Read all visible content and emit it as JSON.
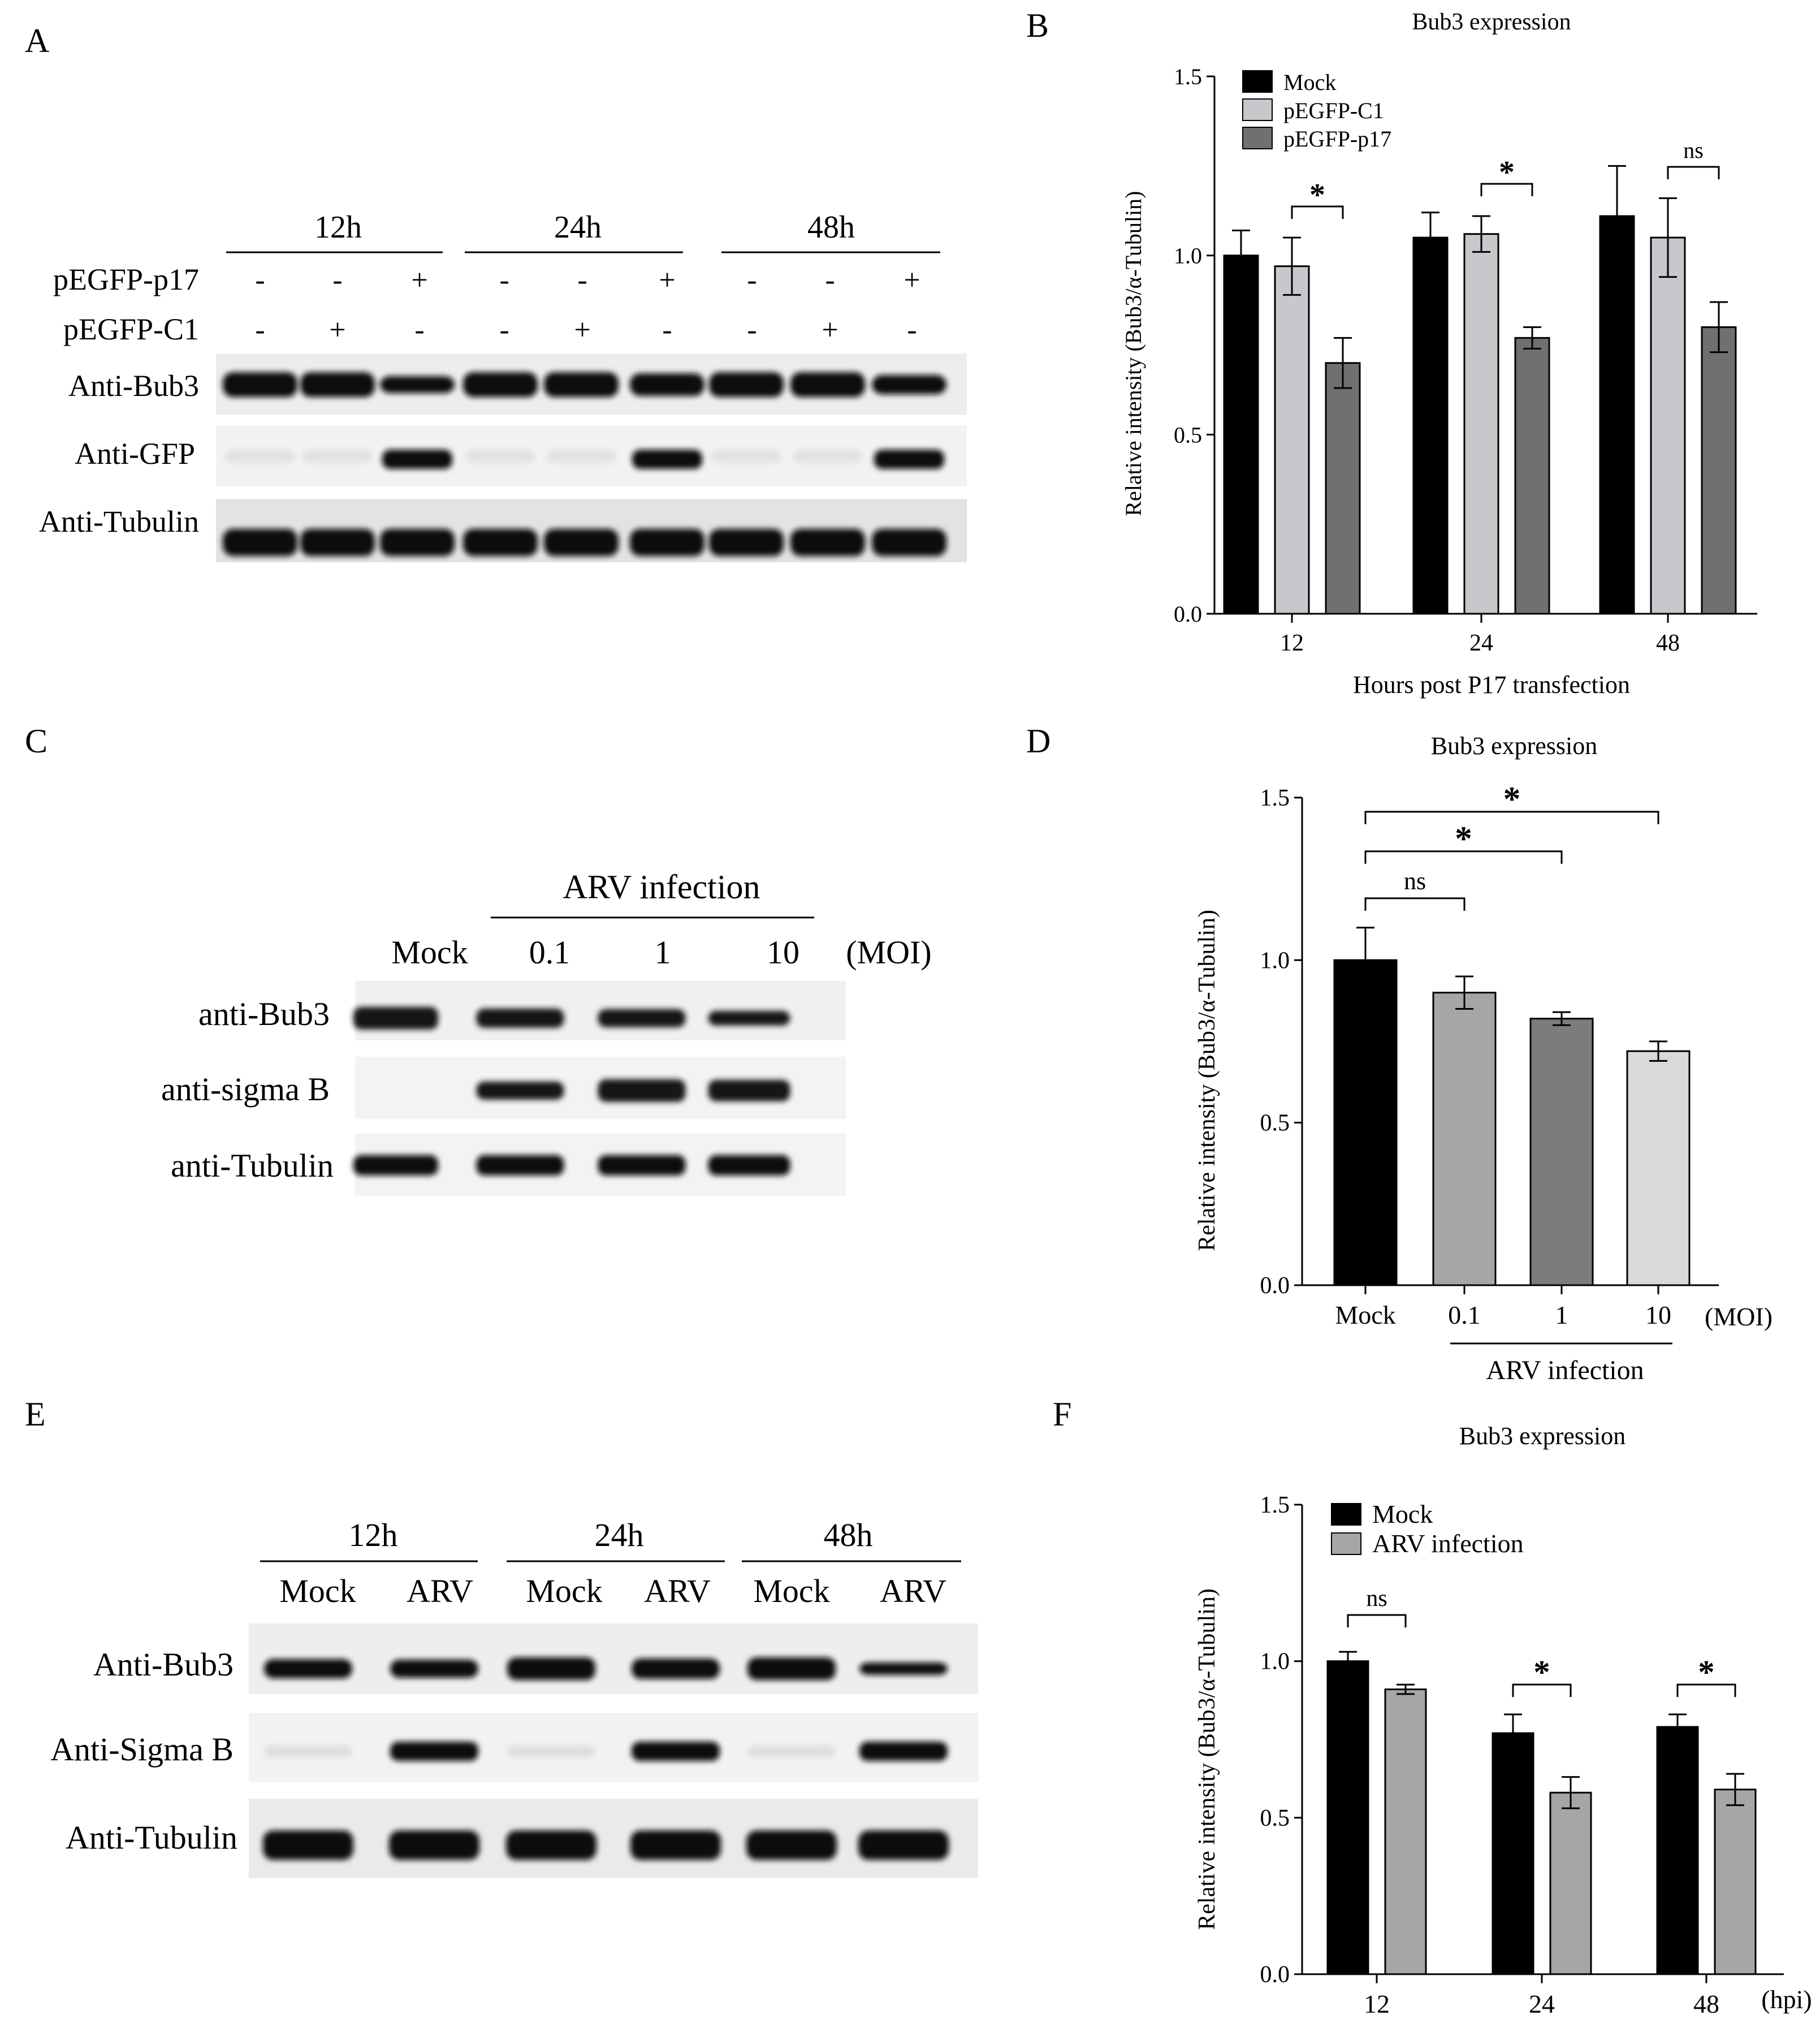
{
  "panel_labels": [
    "A",
    "B",
    "C",
    "D",
    "E",
    "F"
  ],
  "colors": {
    "black": "#000000",
    "light_gray": "#c7c7cc",
    "dark_gray": "#707070",
    "mid_gray": "#a6a6a6",
    "gray_d": "#7c7c7c",
    "pale_gray": "#d9d9d9",
    "bg": "#ffffff"
  },
  "blot_a": {
    "timepoints": [
      "12h",
      "24h",
      "48h"
    ],
    "row_labels": [
      "pEGFP-p17",
      "pEGFP-C1"
    ],
    "p17_signs": [
      "-",
      "-",
      "+",
      "-",
      "-",
      "+",
      "-",
      "-",
      "+"
    ],
    "c1_signs": [
      "-",
      "+",
      "-",
      "-",
      "+",
      "-",
      "-",
      "+",
      "-"
    ],
    "antibodies": [
      "Anti-Bub3",
      "Anti-GFP",
      "Anti-Tubulin"
    ]
  },
  "blot_c": {
    "group_label": "ARV infection",
    "lanes": [
      "Mock",
      "0.1",
      "1",
      "10"
    ],
    "unit": "(MOI)",
    "antibodies": [
      "anti-Bub3",
      "anti-sigma B",
      "anti-Tubulin"
    ]
  },
  "blot_e": {
    "timepoints": [
      "12h",
      "24h",
      "48h"
    ],
    "lanes": [
      "Mock",
      "ARV",
      "Mock",
      "ARV",
      "Mock",
      "ARV"
    ],
    "antibodies": [
      "Anti-Bub3",
      "Anti-Sigma B",
      "Anti-Tubulin"
    ]
  },
  "chart_data": [
    {
      "panel": "B",
      "type": "bar",
      "title": "Bub3 expression",
      "xlabel": "Hours post P17 transfection",
      "ylabel": "Relative intensity (Bub3/α-Tubulin)",
      "ylim": [
        0,
        1.5
      ],
      "yticks": [
        "0.0",
        "0.5",
        "1.0",
        "1.5"
      ],
      "categories": [
        "12",
        "24",
        "48"
      ],
      "legend_position": "top-left",
      "series": [
        {
          "name": "Mock",
          "color": "#000000",
          "values": [
            1.0,
            1.05,
            1.11
          ],
          "errors": [
            0.07,
            0.07,
            0.14
          ]
        },
        {
          "name": "pEGFP-C1",
          "color": "#c7c7cc",
          "values": [
            0.97,
            1.06,
            1.05
          ],
          "errors": [
            0.08,
            0.05,
            0.11
          ]
        },
        {
          "name": "pEGFP-p17",
          "color": "#707070",
          "values": [
            0.7,
            0.77,
            0.8
          ],
          "errors": [
            0.07,
            0.03,
            0.07
          ]
        }
      ],
      "annotations": [
        "*",
        "*",
        "ns"
      ]
    },
    {
      "panel": "D",
      "type": "bar",
      "title": "Bub3 expression",
      "xlabel": "",
      "ylabel": "Relative intensity (Bub3/α-Tubulin)",
      "ylim": [
        0,
        1.5
      ],
      "yticks": [
        "0.0",
        "0.5",
        "1.0",
        "1.5"
      ],
      "categories": [
        "Mock",
        "0.1",
        "1",
        "10"
      ],
      "unit_label": "(MOI)",
      "group_label": "ARV infection",
      "values": [
        1.0,
        0.9,
        0.82,
        0.72
      ],
      "errors": [
        0.1,
        0.05,
        0.02,
        0.03
      ],
      "colors": [
        "#000000",
        "#a6a6a6",
        "#7c7c7c",
        "#d9d9d9"
      ],
      "annotations": [
        "ns",
        "*",
        "*"
      ]
    },
    {
      "panel": "F",
      "type": "bar",
      "title": "Bub3 expression",
      "xlabel": "",
      "ylabel": "Relative intensity (Bub3/α-Tubulin)",
      "ylim": [
        0,
        1.5
      ],
      "yticks": [
        "0.0",
        "0.5",
        "1.0",
        "1.5"
      ],
      "categories": [
        "12",
        "24",
        "48"
      ],
      "unit_label": "(hpi)",
      "legend_position": "top-left",
      "series": [
        {
          "name": "Mock",
          "color": "#000000",
          "values": [
            1.0,
            0.77,
            0.79
          ],
          "errors": [
            0.03,
            0.06,
            0.04
          ]
        },
        {
          "name": "ARV infection",
          "color": "#a6a6a6",
          "values": [
            0.91,
            0.58,
            0.59
          ],
          "errors": [
            0.015,
            0.05,
            0.05
          ]
        }
      ],
      "annotations": [
        "ns",
        "*",
        "*"
      ]
    }
  ]
}
